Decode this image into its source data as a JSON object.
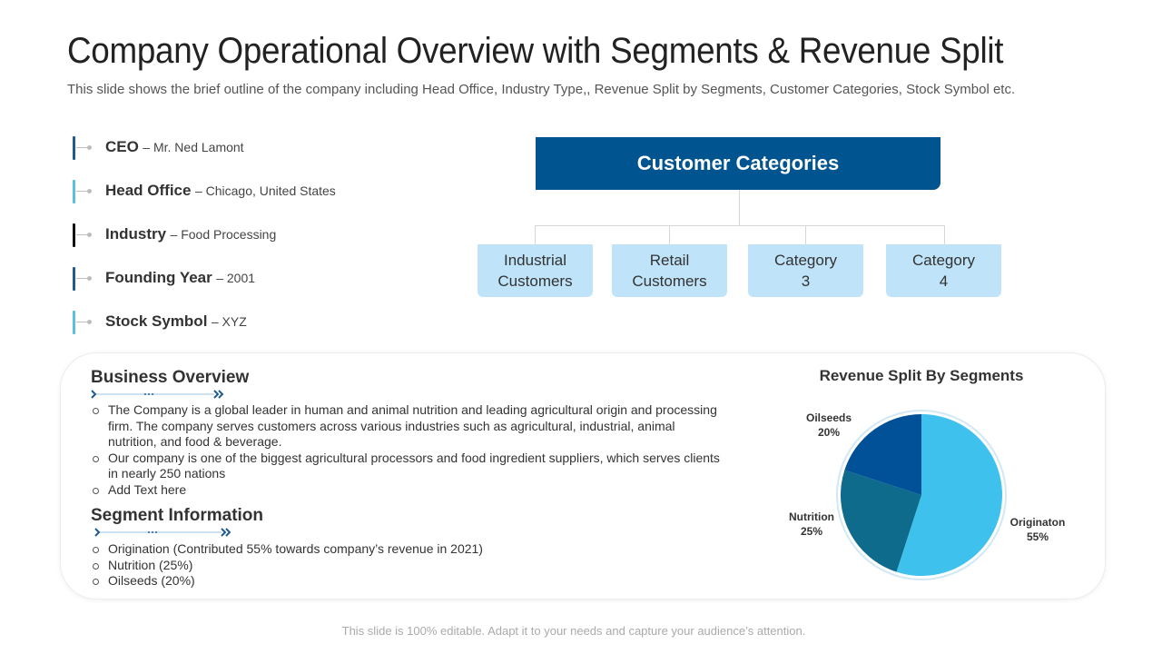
{
  "title": "Company Operational Overview with Segments & Revenue Split",
  "subtitle": "This slide shows the brief outline of the company including Head Office, Industry  Type,, Revenue Split by Segments, Customer Categories, Stock Symbol etc.",
  "facts": [
    {
      "label": "CEO",
      "value": "– Mr. Ned Lamont",
      "color": "#1f5b8f"
    },
    {
      "label": "Head Office",
      "value": "– Chicago, United States",
      "color": "#5bc0de"
    },
    {
      "label": "Industry",
      "value": "– Food Processing",
      "color": "#111111"
    },
    {
      "label": "Founding Year",
      "value": "– 2001",
      "color": "#1f5b8f"
    },
    {
      "label": "Stock Symbol",
      "value": "– XYZ",
      "color": "#5bc0de"
    }
  ],
  "customer_categories": {
    "header": "Customer Categories",
    "header_color": "#00548f",
    "items": [
      "Industrial\nCustomers",
      "Retail\nCustomers",
      "Category\n3",
      "Category\n4"
    ]
  },
  "business_overview": {
    "title": "Business Overview",
    "bullets": [
      "The Company is a global leader in human and animal nutrition and leading agricultural origin and processing firm. The company serves customers across various industries such as agricultural, industrial, animal nutrition, and food & beverage.",
      "Our company is one of the biggest agricultural processors and food ingredient suppliers, which serves clients in nearly 250 nations",
      "Add Text here"
    ]
  },
  "segment_information": {
    "title": "Segment Information",
    "bullets": [
      "Origination (Contributed 55% towards company’s revenue in 2021)",
      "Nutrition (25%)",
      "Oilseeds (20%)"
    ]
  },
  "chart_data": {
    "type": "pie",
    "title": "Revenue Split By Segments",
    "slices": [
      {
        "label": "Originaton",
        "value": 55,
        "display": "55%",
        "color": "#3fc1ee"
      },
      {
        "label": "Nutrition",
        "value": 25,
        "display": "25%",
        "color": "#0e6b8c"
      },
      {
        "label": "Oilseeds",
        "value": 20,
        "display": "20%",
        "color": "#005197"
      }
    ]
  },
  "footer": "This slide is 100% editable. Adapt it to your needs and capture your audience’s attention."
}
